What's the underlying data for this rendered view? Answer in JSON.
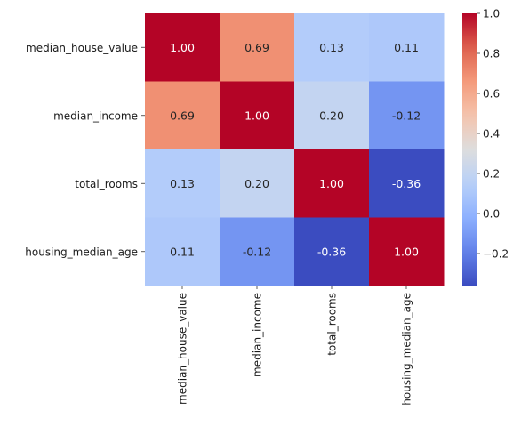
{
  "chart_data": {
    "type": "heatmap",
    "title": "",
    "row_labels": [
      "median_house_value",
      "median_income",
      "total_rooms",
      "housing_median_age"
    ],
    "col_labels": [
      "median_house_value",
      "median_income",
      "total_rooms",
      "housing_median_age"
    ],
    "values": [
      [
        1.0,
        0.69,
        0.13,
        0.11
      ],
      [
        0.69,
        1.0,
        0.2,
        -0.12
      ],
      [
        0.13,
        0.2,
        1.0,
        -0.36
      ],
      [
        0.11,
        -0.12,
        -0.36,
        1.0
      ]
    ],
    "value_format": "2 decimals",
    "colormap": "coolwarm",
    "colorbar": {
      "range": [
        -0.36,
        1.0
      ],
      "ticks": [
        -0.2,
        0.0,
        0.2,
        0.4,
        0.6,
        0.8,
        1.0
      ],
      "tick_labels": [
        "−0.2",
        "0.0",
        "0.2",
        "0.4",
        "0.6",
        "0.8",
        "1.0"
      ]
    }
  }
}
